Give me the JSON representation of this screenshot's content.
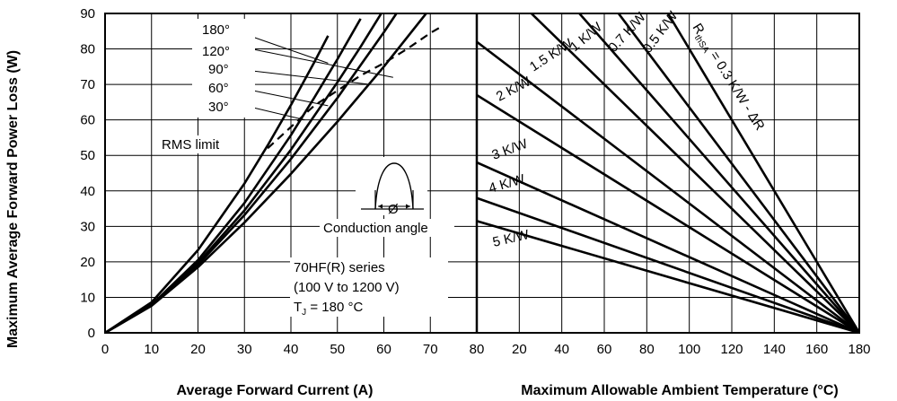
{
  "chart_data": [
    {
      "type": "line",
      "ylabel": "Maximum Average Forward Power Loss (W)",
      "xlabel": "Average Forward Current (A)",
      "xlim": [
        0,
        80
      ],
      "ylim": [
        0,
        90
      ],
      "xticks": [
        0,
        10,
        20,
        30,
        40,
        50,
        60,
        70,
        80
      ],
      "yticks": [
        0,
        10,
        20,
        30,
        40,
        50,
        60,
        70,
        80,
        90
      ],
      "grid": true,
      "series": [
        {
          "name": "180°",
          "x": [
            0,
            10,
            20,
            30,
            40,
            50,
            60,
            70,
            75
          ],
          "y": [
            0,
            7.6,
            18.5,
            31.1,
            44.8,
            59.5,
            75.0,
            91.5,
            100
          ]
        },
        {
          "name": "120°",
          "x": [
            0,
            10,
            20,
            30,
            40,
            50,
            60,
            65
          ],
          "y": [
            0,
            7.7,
            19.2,
            33.2,
            49.0,
            66.2,
            84.7,
            94.5
          ]
        },
        {
          "name": "90°",
          "x": [
            0,
            10,
            20,
            30,
            40,
            50,
            55,
            60
          ],
          "y": [
            0,
            7.8,
            19.7,
            34.5,
            51.6,
            70.6,
            80.6,
            91.2
          ]
        },
        {
          "name": "60°",
          "x": [
            0,
            10,
            20,
            30,
            40,
            45,
            50,
            55
          ],
          "y": [
            0,
            7.9,
            20.5,
            36.6,
            55.7,
            66.2,
            77.1,
            88.5
          ]
        },
        {
          "name": "30°",
          "x": [
            0,
            10,
            20,
            30,
            35,
            40,
            45,
            48
          ],
          "y": [
            0,
            8.6,
            23.3,
            42.1,
            52.8,
            64.2,
            76.2,
            83.7
          ]
        },
        {
          "name": "RMS limit",
          "style": "dashed",
          "x": [
            35,
            45,
            55,
            60,
            65,
            70,
            72
          ],
          "y": [
            52,
            64,
            72.5,
            76,
            80,
            84.5,
            86
          ]
        }
      ],
      "annotations": [
        "RMS limit",
        "Conduction angle",
        "70HF(R) series",
        "(100 V to 1200 V)",
        "TJ = 180 °C"
      ],
      "inset_symbol": "Ø"
    },
    {
      "type": "line",
      "xlabel": "Maximum Allowable Ambient Temperature (°C)",
      "xlim": [
        0,
        180
      ],
      "ylim": [
        0,
        90
      ],
      "xticks": [
        20,
        40,
        60,
        80,
        100,
        120,
        140,
        160,
        180
      ],
      "grid": true,
      "series": [
        {
          "name": "RthSA = 0.3 K/W - ΔR",
          "x": [
            0,
            180
          ],
          "y": [
            180,
            0
          ]
        },
        {
          "name": "0.5 K/W",
          "x": [
            0,
            180
          ],
          "y": [
            143,
            0
          ]
        },
        {
          "name": "0.7 K/W",
          "x": [
            0,
            180
          ],
          "y": [
            123,
            0
          ]
        },
        {
          "name": "1 K/W",
          "x": [
            0,
            180
          ],
          "y": [
            105,
            0
          ]
        },
        {
          "name": "1.5 K/W",
          "x": [
            0,
            180
          ],
          "y": [
            82,
            0
          ]
        },
        {
          "name": "2 K/W",
          "x": [
            0,
            180
          ],
          "y": [
            67,
            0
          ]
        },
        {
          "name": "3 K/W",
          "x": [
            0,
            180
          ],
          "y": [
            48,
            0
          ]
        },
        {
          "name": "4 K/W",
          "x": [
            0,
            180
          ],
          "y": [
            38,
            0
          ]
        },
        {
          "name": "5 K/W",
          "x": [
            0,
            180
          ],
          "y": [
            31.5,
            0
          ]
        }
      ],
      "labels": {
        "rthsa_main": "R",
        "rthsa_sub": "thSA",
        "rthsa_rest": " = 0.3 K/W - ΔR",
        "tj_main": "T",
        "tj_sub": "J",
        "tj_rest": " = 180 °C"
      }
    }
  ]
}
